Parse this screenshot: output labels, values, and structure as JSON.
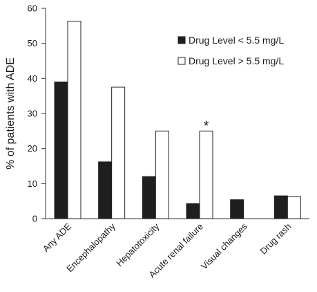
{
  "chart_data": {
    "type": "bar",
    "title": "",
    "xlabel": "",
    "ylabel": "% of patients with ADE",
    "ylim": [
      0,
      60
    ],
    "yticks": [
      0,
      10,
      20,
      30,
      40,
      50,
      60
    ],
    "grid": false,
    "legend_position": "top-right",
    "categories": [
      "Any ADE",
      "Encephalopathy",
      "Hepatotoxicity",
      "Acute renal failure",
      "Visual changes",
      "Drug rash"
    ],
    "series": [
      {
        "name": "Drug Level < 5.5 mg/L",
        "color": "#1f1f1f",
        "values": [
          39,
          16.2,
          12,
          4.3,
          5.4,
          6.5
        ]
      },
      {
        "name": "Drug Level > 5.5 mg/L",
        "color": "#ffffff",
        "values": [
          56.3,
          37.5,
          25,
          25,
          0,
          6.3
        ]
      }
    ],
    "annotations": [
      {
        "text": "*",
        "category": "Acute renal failure",
        "series": 1
      }
    ]
  }
}
